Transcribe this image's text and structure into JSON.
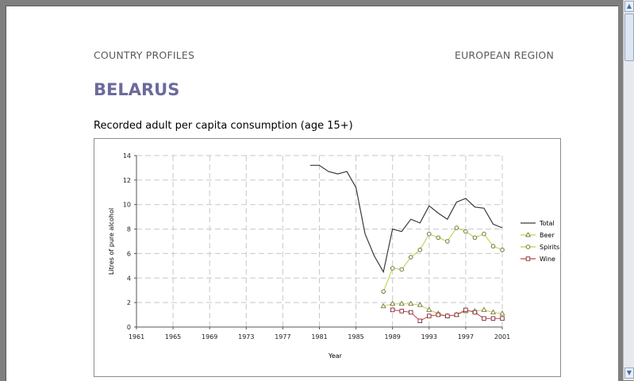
{
  "header": {
    "left": "COUNTRY PROFILES",
    "right": "EUROPEAN REGION"
  },
  "country": "BELARUS",
  "subtitle": "Recorded adult per capita consumption (age 15+)",
  "scrollbar": {
    "up_icon": "scroll-up-arrow-icon",
    "down_icon": "scroll-down-arrow-icon",
    "up_glyph": "▲",
    "down_glyph": "▼"
  },
  "chart_data": {
    "type": "line",
    "xlabel": "Year",
    "ylabel": "Litres of pure alcohol",
    "xlim": [
      1961,
      2001
    ],
    "ylim": [
      0,
      14
    ],
    "x_ticks": [
      "1961",
      "1965",
      "1969",
      "1973",
      "1977",
      "1981",
      "1985",
      "1989",
      "1993",
      "1997",
      "2001"
    ],
    "y_ticks": [
      "0",
      "2",
      "4",
      "6",
      "8",
      "10",
      "12",
      "14"
    ],
    "grid": true,
    "legend_position": "right",
    "series": [
      {
        "name": "Total",
        "color": "#3a3a3a",
        "marker": "none",
        "x": [
          1980,
          1981,
          1982,
          1983,
          1984,
          1985,
          1986,
          1987,
          1988,
          1989,
          1990,
          1991,
          1992,
          1993,
          1994,
          1995,
          1996,
          1997,
          1998,
          1999,
          2000,
          2001
        ],
        "y": [
          13.2,
          13.2,
          12.7,
          12.5,
          12.7,
          11.4,
          7.6,
          5.8,
          4.5,
          8.0,
          7.8,
          8.8,
          8.5,
          9.9,
          9.3,
          8.8,
          10.2,
          10.5,
          9.8,
          9.7,
          8.4,
          8.1
        ]
      },
      {
        "name": "Beer",
        "color": "#c8c86e",
        "marker": "triangle",
        "x": [
          1988,
          1989,
          1990,
          1991,
          1992,
          1993,
          1994,
          1995,
          1996,
          1997,
          1998,
          1999,
          2000,
          2001
        ],
        "y": [
          1.7,
          1.9,
          1.9,
          1.9,
          1.8,
          1.4,
          1.1,
          0.9,
          1.0,
          1.3,
          1.3,
          1.4,
          1.2,
          1.1
        ]
      },
      {
        "name": "Spirits",
        "color": "#b6d13c",
        "marker": "circle",
        "x": [
          1988,
          1989,
          1990,
          1991,
          1992,
          1993,
          1994,
          1995,
          1996,
          1997,
          1998,
          1999,
          2000,
          2001
        ],
        "y": [
          2.9,
          4.8,
          4.7,
          5.7,
          6.3,
          7.6,
          7.3,
          7.0,
          8.1,
          7.8,
          7.3,
          7.6,
          6.6,
          6.3
        ]
      },
      {
        "name": "Wine",
        "color": "#d23a4a",
        "marker": "square",
        "x": [
          1989,
          1990,
          1991,
          1992,
          1993,
          1994,
          1995,
          1996,
          1997,
          1998,
          1999,
          2000,
          2001
        ],
        "y": [
          1.4,
          1.3,
          1.2,
          0.5,
          0.9,
          1.0,
          0.9,
          1.0,
          1.4,
          1.2,
          0.7,
          0.7,
          0.7
        ]
      }
    ]
  }
}
